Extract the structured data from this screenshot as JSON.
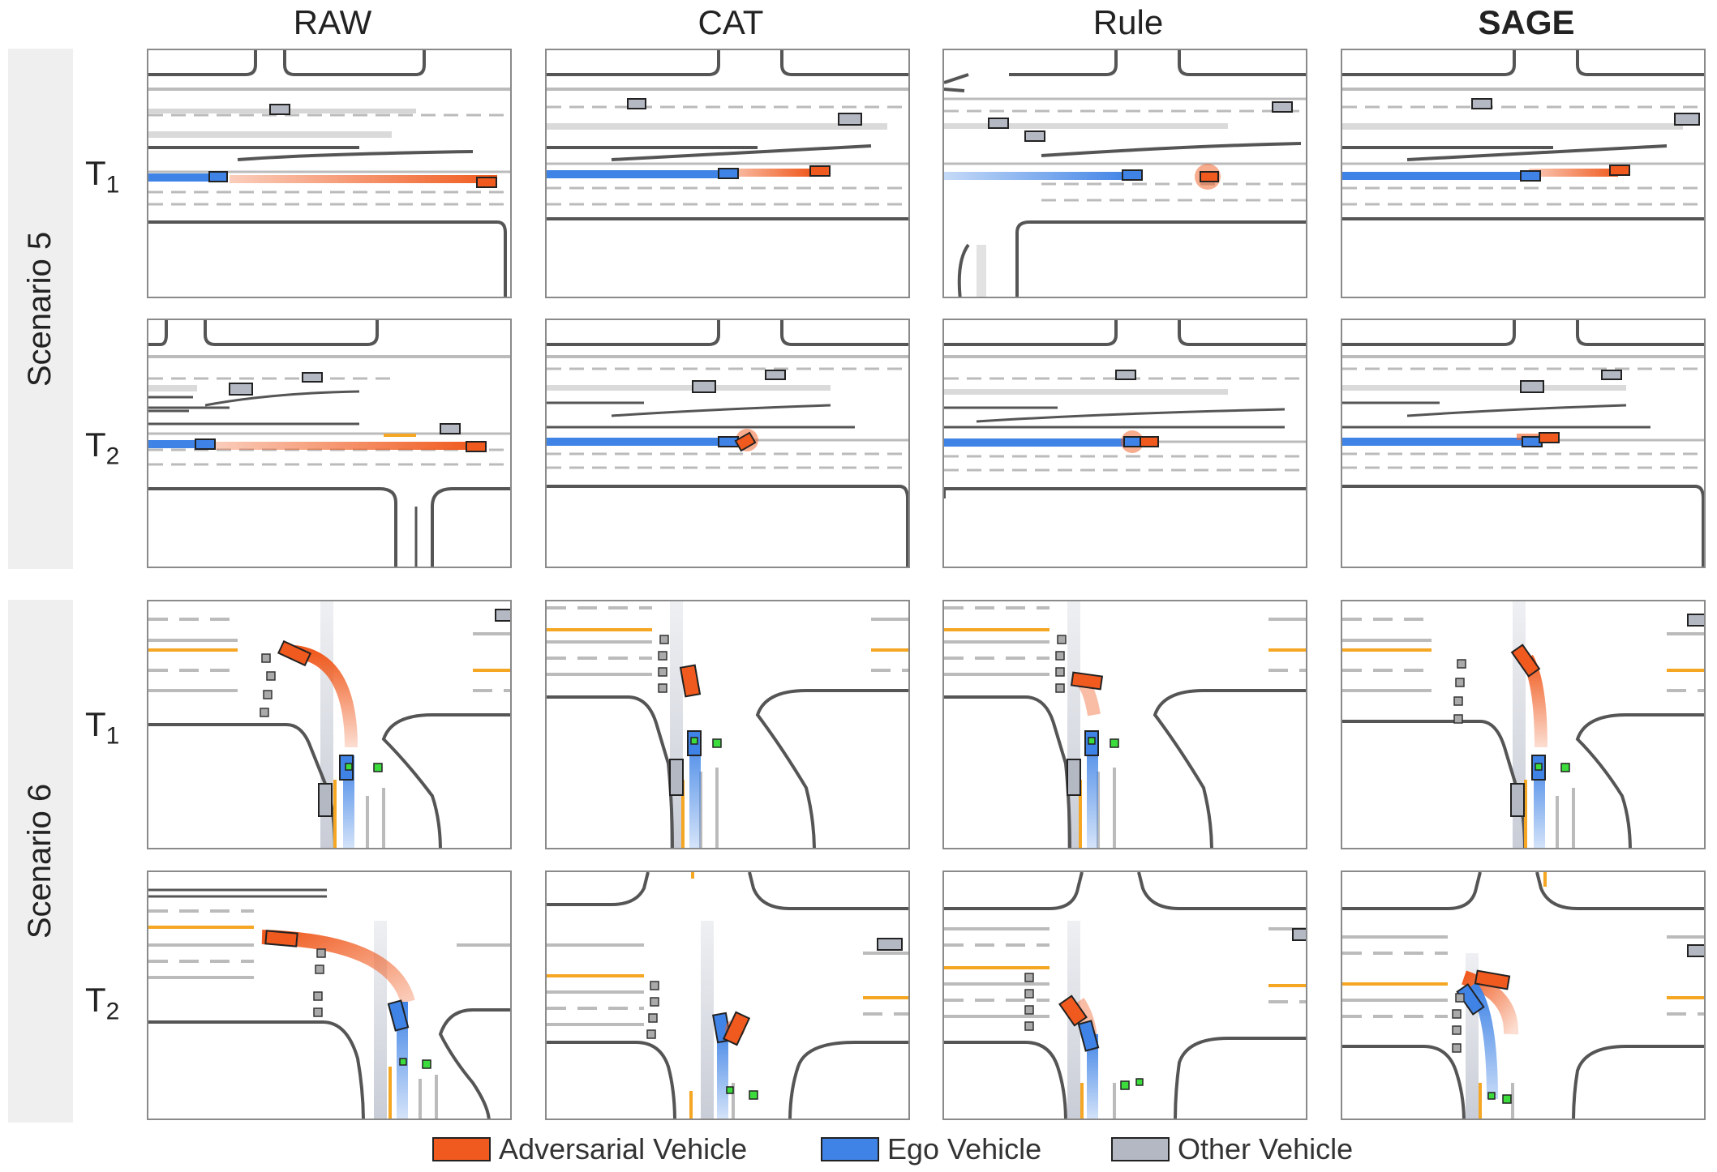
{
  "columns": [
    "RAW",
    "CAT",
    "Rule",
    "SAGE"
  ],
  "scenarios": [
    "Scenario 5",
    "Scenario 6"
  ],
  "row_labels": [
    {
      "main": "T",
      "sub": "1"
    },
    {
      "main": "T",
      "sub": "2"
    }
  ],
  "legend": [
    {
      "label": "Adversarial Vehicle",
      "color": "#f05a1e"
    },
    {
      "label": "Ego Vehicle",
      "color": "#3f83e6"
    },
    {
      "label": "Other Vehicle",
      "color": "#b4b8c2"
    }
  ],
  "colors": {
    "adversarial": "#f05a1e",
    "ego": "#3f83e6",
    "other": "#b4b8c2",
    "road": "#555555",
    "lane": "#b8b8b8",
    "yellow": "#f5a623",
    "green": "#3ddc3d"
  }
}
